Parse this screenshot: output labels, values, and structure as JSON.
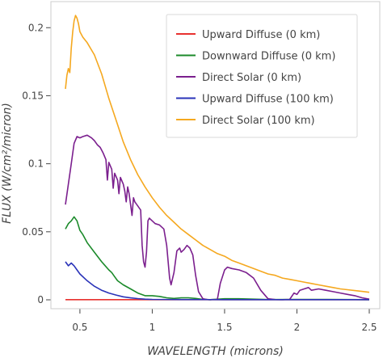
{
  "chart_data": {
    "type": "line",
    "xlabel": "WAVELENGTH (microns)",
    "ylabel": "FLUX (W/cm²/micron)",
    "xlim": [
      0.4,
      2.5
    ],
    "ylim": [
      -0.003,
      0.22
    ],
    "xticks": [
      0.5,
      1,
      1.5,
      2,
      2.5
    ],
    "xtick_labels": [
      "0.5",
      "1",
      "1.5",
      "2",
      "2.5"
    ],
    "yticks": [
      0,
      0.05,
      0.1,
      0.15,
      0.2
    ],
    "ytick_labels": [
      "0",
      "0.05",
      "0.1",
      "0.15",
      "0.2"
    ],
    "grid": false,
    "legend_position": "top-right",
    "series": [
      {
        "name": "Upward Diffuse (0 km)",
        "color": "#e8312f",
        "points": [
          [
            0.4,
            0.0001
          ],
          [
            1.0,
            0.0001
          ],
          [
            1.5,
            0.0001
          ],
          [
            2.0,
            0.0001
          ],
          [
            2.5,
            0.0001
          ]
        ]
      },
      {
        "name": "Downward Diffuse (0 km)",
        "color": "#1b8a2a",
        "points": [
          [
            0.4,
            0.052
          ],
          [
            0.42,
            0.056
          ],
          [
            0.44,
            0.058
          ],
          [
            0.46,
            0.061
          ],
          [
            0.48,
            0.058
          ],
          [
            0.5,
            0.051
          ],
          [
            0.52,
            0.048
          ],
          [
            0.55,
            0.042
          ],
          [
            0.6,
            0.035
          ],
          [
            0.65,
            0.028
          ],
          [
            0.7,
            0.022
          ],
          [
            0.72,
            0.02
          ],
          [
            0.74,
            0.017
          ],
          [
            0.76,
            0.014
          ],
          [
            0.8,
            0.011
          ],
          [
            0.85,
            0.008
          ],
          [
            0.9,
            0.005
          ],
          [
            0.95,
            0.003
          ],
          [
            1.0,
            0.003
          ],
          [
            1.05,
            0.0025
          ],
          [
            1.1,
            0.0015
          ],
          [
            1.15,
            0.001
          ],
          [
            1.2,
            0.0015
          ],
          [
            1.25,
            0.0015
          ],
          [
            1.3,
            0.001
          ],
          [
            1.35,
            0.0003
          ],
          [
            1.4,
            0.0001
          ],
          [
            1.5,
            0.0008
          ],
          [
            1.6,
            0.0008
          ],
          [
            1.7,
            0.0005
          ],
          [
            1.8,
            0.0002
          ],
          [
            2.0,
            0.0003
          ],
          [
            2.2,
            0.0003
          ],
          [
            2.5,
            0.0001
          ]
        ]
      },
      {
        "name": "Direct Solar (0 km)",
        "color": "#7b1f8e",
        "points": [
          [
            0.4,
            0.07
          ],
          [
            0.42,
            0.085
          ],
          [
            0.44,
            0.1
          ],
          [
            0.46,
            0.115
          ],
          [
            0.48,
            0.12
          ],
          [
            0.5,
            0.119
          ],
          [
            0.52,
            0.12
          ],
          [
            0.55,
            0.121
          ],
          [
            0.58,
            0.119
          ],
          [
            0.6,
            0.117
          ],
          [
            0.62,
            0.114
          ],
          [
            0.64,
            0.112
          ],
          [
            0.66,
            0.108
          ],
          [
            0.68,
            0.103
          ],
          [
            0.69,
            0.088
          ],
          [
            0.7,
            0.101
          ],
          [
            0.72,
            0.096
          ],
          [
            0.73,
            0.082
          ],
          [
            0.74,
            0.093
          ],
          [
            0.76,
            0.088
          ],
          [
            0.77,
            0.078
          ],
          [
            0.78,
            0.09
          ],
          [
            0.8,
            0.085
          ],
          [
            0.81,
            0.08
          ],
          [
            0.82,
            0.072
          ],
          [
            0.83,
            0.083
          ],
          [
            0.84,
            0.078
          ],
          [
            0.86,
            0.062
          ],
          [
            0.87,
            0.075
          ],
          [
            0.88,
            0.072
          ],
          [
            0.9,
            0.069
          ],
          [
            0.92,
            0.066
          ],
          [
            0.93,
            0.04
          ],
          [
            0.94,
            0.028
          ],
          [
            0.95,
            0.024
          ],
          [
            0.96,
            0.035
          ],
          [
            0.97,
            0.058
          ],
          [
            0.98,
            0.06
          ],
          [
            1.0,
            0.058
          ],
          [
            1.02,
            0.056
          ],
          [
            1.05,
            0.055
          ],
          [
            1.08,
            0.052
          ],
          [
            1.1,
            0.04
          ],
          [
            1.12,
            0.016
          ],
          [
            1.13,
            0.011
          ],
          [
            1.15,
            0.02
          ],
          [
            1.17,
            0.036
          ],
          [
            1.19,
            0.038
          ],
          [
            1.2,
            0.035
          ],
          [
            1.22,
            0.037
          ],
          [
            1.24,
            0.04
          ],
          [
            1.26,
            0.038
          ],
          [
            1.28,
            0.033
          ],
          [
            1.3,
            0.018
          ],
          [
            1.32,
            0.006
          ],
          [
            1.35,
            0.0008
          ],
          [
            1.38,
            0.0002
          ],
          [
            1.4,
            0.0001
          ],
          [
            1.45,
            0.0003
          ],
          [
            1.47,
            0.012
          ],
          [
            1.5,
            0.022
          ],
          [
            1.52,
            0.024
          ],
          [
            1.55,
            0.023
          ],
          [
            1.6,
            0.022
          ],
          [
            1.65,
            0.02
          ],
          [
            1.7,
            0.016
          ],
          [
            1.75,
            0.007
          ],
          [
            1.8,
            0.0008
          ],
          [
            1.85,
            0.0002
          ],
          [
            1.9,
            0.0001
          ],
          [
            1.95,
            0.0003
          ],
          [
            1.98,
            0.005
          ],
          [
            2.0,
            0.004
          ],
          [
            2.02,
            0.007
          ],
          [
            2.05,
            0.008
          ],
          [
            2.08,
            0.009
          ],
          [
            2.1,
            0.007
          ],
          [
            2.15,
            0.008
          ],
          [
            2.2,
            0.007
          ],
          [
            2.25,
            0.006
          ],
          [
            2.3,
            0.005
          ],
          [
            2.35,
            0.004
          ],
          [
            2.4,
            0.003
          ],
          [
            2.45,
            0.0015
          ],
          [
            2.5,
            0.0005
          ]
        ]
      },
      {
        "name": "Upward Diffuse (100 km)",
        "color": "#2a33b8",
        "points": [
          [
            0.4,
            0.028
          ],
          [
            0.42,
            0.025
          ],
          [
            0.44,
            0.027
          ],
          [
            0.46,
            0.025
          ],
          [
            0.48,
            0.022
          ],
          [
            0.5,
            0.019
          ],
          [
            0.55,
            0.014
          ],
          [
            0.6,
            0.01
          ],
          [
            0.65,
            0.007
          ],
          [
            0.7,
            0.005
          ],
          [
            0.75,
            0.0035
          ],
          [
            0.8,
            0.0022
          ],
          [
            0.85,
            0.0014
          ],
          [
            0.9,
            0.0009
          ],
          [
            0.95,
            0.0005
          ],
          [
            1.0,
            0.0003
          ],
          [
            1.2,
            0.0002
          ],
          [
            1.5,
            0.0001
          ],
          [
            2.5,
            0.0001
          ]
        ]
      },
      {
        "name": "Direct Solar (100 km)",
        "color": "#f5a81f",
        "points": [
          [
            0.4,
            0.155
          ],
          [
            0.41,
            0.165
          ],
          [
            0.42,
            0.17
          ],
          [
            0.43,
            0.167
          ],
          [
            0.44,
            0.185
          ],
          [
            0.45,
            0.197
          ],
          [
            0.46,
            0.205
          ],
          [
            0.47,
            0.209
          ],
          [
            0.48,
            0.207
          ],
          [
            0.49,
            0.203
          ],
          [
            0.5,
            0.197
          ],
          [
            0.52,
            0.193
          ],
          [
            0.55,
            0.189
          ],
          [
            0.6,
            0.18
          ],
          [
            0.65,
            0.166
          ],
          [
            0.7,
            0.148
          ],
          [
            0.75,
            0.132
          ],
          [
            0.8,
            0.116
          ],
          [
            0.85,
            0.103
          ],
          [
            0.9,
            0.092
          ],
          [
            0.95,
            0.083
          ],
          [
            1.0,
            0.075
          ],
          [
            1.05,
            0.068
          ],
          [
            1.1,
            0.062
          ],
          [
            1.15,
            0.057
          ],
          [
            1.2,
            0.052
          ],
          [
            1.25,
            0.048
          ],
          [
            1.3,
            0.044
          ],
          [
            1.35,
            0.04
          ],
          [
            1.4,
            0.037
          ],
          [
            1.45,
            0.034
          ],
          [
            1.5,
            0.032
          ],
          [
            1.55,
            0.029
          ],
          [
            1.6,
            0.027
          ],
          [
            1.65,
            0.025
          ],
          [
            1.7,
            0.023
          ],
          [
            1.75,
            0.021
          ],
          [
            1.8,
            0.019
          ],
          [
            1.85,
            0.018
          ],
          [
            1.9,
            0.016
          ],
          [
            1.95,
            0.015
          ],
          [
            2.0,
            0.014
          ],
          [
            2.05,
            0.013
          ],
          [
            2.1,
            0.012
          ],
          [
            2.15,
            0.011
          ],
          [
            2.2,
            0.01
          ],
          [
            2.25,
            0.009
          ],
          [
            2.3,
            0.008
          ],
          [
            2.35,
            0.0074
          ],
          [
            2.4,
            0.0068
          ],
          [
            2.45,
            0.0062
          ],
          [
            2.5,
            0.0055
          ]
        ]
      }
    ]
  }
}
